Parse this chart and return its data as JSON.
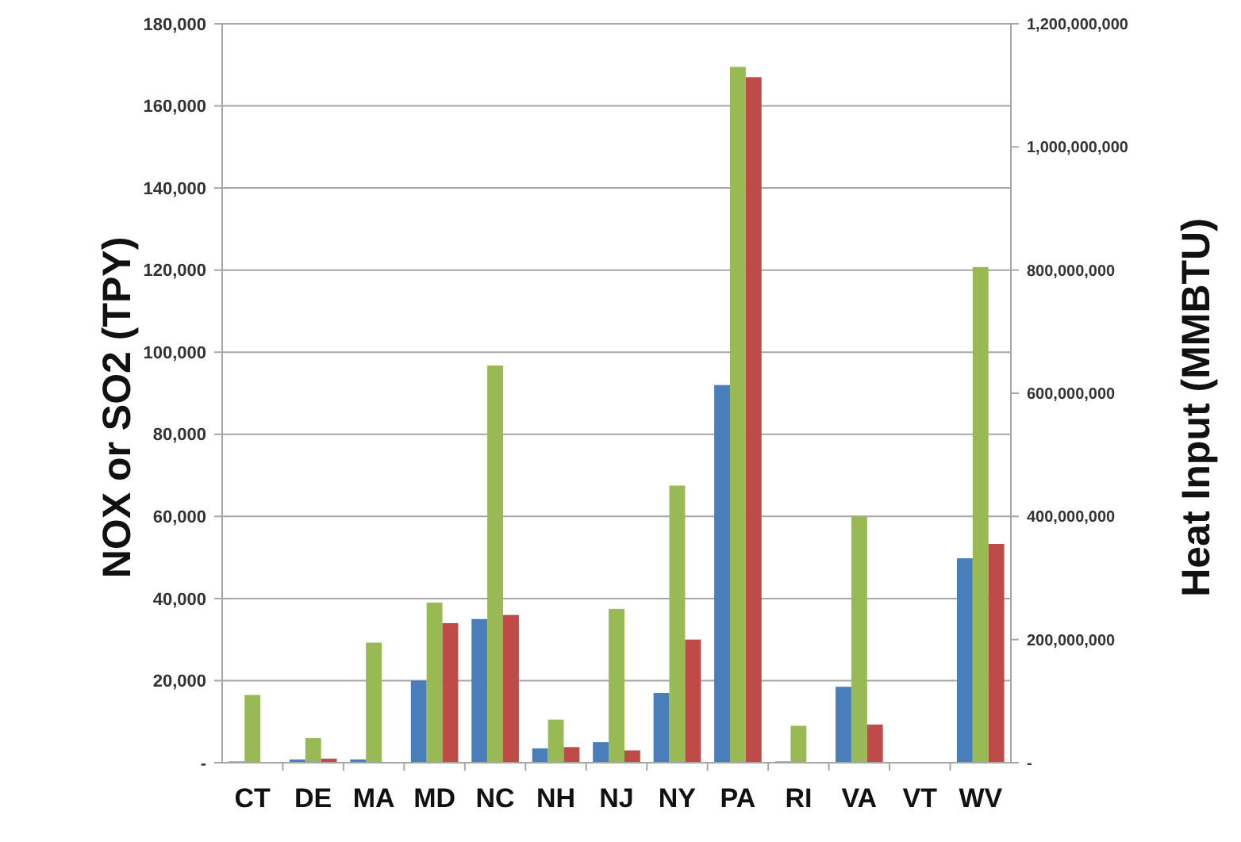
{
  "chart_data": {
    "type": "bar",
    "ylabel": "NOX or SO2 (TPY)",
    "y2label": "Heat Input (MMBTU)",
    "categories": [
      "CT",
      "DE",
      "MA",
      "MD",
      "NC",
      "NH",
      "NJ",
      "NY",
      "PA",
      "RI",
      "VA",
      "VT",
      "WV"
    ],
    "series": [
      {
        "color": "#4a7ebb",
        "values": [
          300,
          800,
          800,
          20000,
          35000,
          3500,
          5000,
          17000,
          92000,
          300,
          18500,
          0,
          49800
        ]
      },
      {
        "color": "#98b954",
        "axis": "y2",
        "values": [
          110000000,
          40000000,
          195000000,
          260000000,
          645000000,
          70000000,
          250000000,
          450000000,
          1130000000,
          60000000,
          400000000,
          0,
          805000000
        ]
      },
      {
        "color": "#be4b48",
        "values": [
          null,
          1000,
          0,
          34000,
          36000,
          3800,
          3000,
          30000,
          167000,
          0,
          9300,
          0,
          53300
        ]
      }
    ],
    "ylim": [
      0,
      180000
    ],
    "yticks": [
      {
        "value": 0,
        "label": "-"
      },
      {
        "value": 20000,
        "label": "20,000"
      },
      {
        "value": 40000,
        "label": "40,000"
      },
      {
        "value": 60000,
        "label": "60,000"
      },
      {
        "value": 80000,
        "label": "80,000"
      },
      {
        "value": 100000,
        "label": "100,000"
      },
      {
        "value": 120000,
        "label": "120,000"
      },
      {
        "value": 140000,
        "label": "140,000"
      },
      {
        "value": 160000,
        "label": "160,000"
      },
      {
        "value": 180000,
        "label": "180,000"
      }
    ],
    "y2lim": [
      0,
      1200000000
    ],
    "y2ticks": [
      {
        "value": 0,
        "label": "-"
      },
      {
        "value": 200000000,
        "label": "200,000,000"
      },
      {
        "value": 400000000,
        "label": "400,000,000"
      },
      {
        "value": 600000000,
        "label": "600,000,000"
      },
      {
        "value": 800000000,
        "label": "800,000,000"
      },
      {
        "value": 1000000000,
        "label": "1,000,000,000"
      },
      {
        "value": 1200000000,
        "label": "1,200,000,000"
      }
    ],
    "grid": "y"
  }
}
